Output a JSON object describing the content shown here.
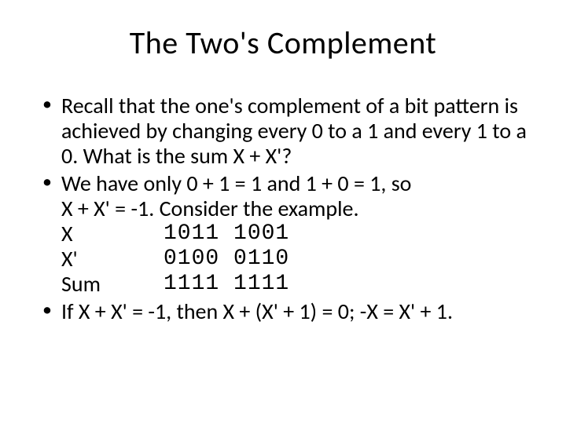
{
  "title": "The Two's Complement",
  "bullets": {
    "b1": "Recall that the one's complement of a bit pattern is achieved by changing every 0 to a 1 and every 1 to a 0.  What is the sum X + X'?",
    "b2_line1": "We have only 0 + 1 = 1 and 1 + 0 = 1, so",
    "b2_line2": "X + X' = -1.  Consider the example.",
    "b3": "If X + X' = -1, then X + (X' + 1) = 0; -X = X' + 1."
  },
  "example": {
    "rows": [
      {
        "label": "X",
        "value": "1011 1001"
      },
      {
        "label": "X'",
        "value": "0100 0110"
      },
      {
        "label": "Sum",
        "value": "1111 1111"
      }
    ]
  },
  "style": {
    "background_color": "#ffffff",
    "text_color": "#000000",
    "title_fontsize": 40,
    "body_fontsize": 28,
    "mono_font": "Courier New"
  }
}
